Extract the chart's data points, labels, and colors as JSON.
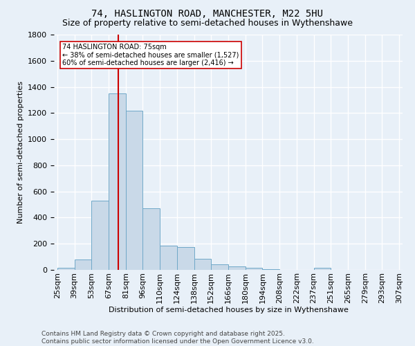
{
  "title": "74, HASLINGTON ROAD, MANCHESTER, M22 5HU",
  "subtitle": "Size of property relative to semi-detached houses in Wythenshawe",
  "xlabel": "Distribution of semi-detached houses by size in Wythenshawe",
  "ylabel": "Number of semi-detached properties",
  "bins": [
    "25sqm",
    "39sqm",
    "53sqm",
    "67sqm",
    "81sqm",
    "96sqm",
    "110sqm",
    "124sqm",
    "138sqm",
    "152sqm",
    "166sqm",
    "180sqm",
    "194sqm",
    "208sqm",
    "222sqm",
    "237sqm",
    "251sqm",
    "265sqm",
    "279sqm",
    "293sqm",
    "307sqm"
  ],
  "values": [
    15,
    80,
    530,
    1350,
    1220,
    470,
    185,
    175,
    85,
    42,
    28,
    18,
    5,
    0,
    0,
    18,
    0,
    0,
    0,
    0
  ],
  "bar_color": "#c9d9e8",
  "bar_edge_color": "#6fa8c8",
  "property_line_color": "#cc0000",
  "annotation_text": "74 HASLINGTON ROAD: 75sqm\n← 38% of semi-detached houses are smaller (1,527)\n60% of semi-detached houses are larger (2,416) →",
  "annotation_box_color": "#ffffff",
  "annotation_box_edge": "#cc0000",
  "ylim": [
    0,
    1800
  ],
  "yticks": [
    0,
    200,
    400,
    600,
    800,
    1000,
    1200,
    1400,
    1600,
    1800
  ],
  "footer_line1": "Contains HM Land Registry data © Crown copyright and database right 2025.",
  "footer_line2": "Contains public sector information licensed under the Open Government Licence v3.0.",
  "background_color": "#e8f0f8",
  "grid_color": "#ffffff",
  "title_fontsize": 10,
  "subtitle_fontsize": 9,
  "axis_label_fontsize": 8,
  "tick_fontsize": 8,
  "annotation_fontsize": 7,
  "footer_fontsize": 6.5
}
